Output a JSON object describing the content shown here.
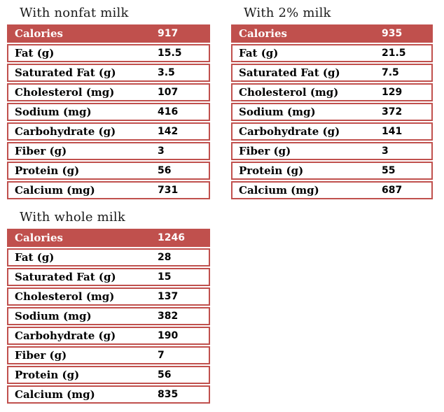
{
  "page": {
    "accent_color": "#c0504d",
    "background_color": "#ffffff"
  },
  "tables": [
    {
      "title": "With nonfat milk",
      "header": {
        "label": "Calories",
        "value": "917"
      },
      "rows": [
        {
          "label": "Fat (g)",
          "value": "15.5"
        },
        {
          "label": "Saturated Fat (g)",
          "value": "3.5"
        },
        {
          "label": "Cholesterol (mg)",
          "value": "107"
        },
        {
          "label": "Sodium (mg)",
          "value": "416"
        },
        {
          "label": "Carbohydrate (g)",
          "value": "142"
        },
        {
          "label": "Fiber (g)",
          "value": "3"
        },
        {
          "label": "Protein (g)",
          "value": "56"
        },
        {
          "label": "Calcium (mg)",
          "value": "731"
        }
      ]
    },
    {
      "title": "With 2% milk",
      "header": {
        "label": "Calories",
        "value": "935"
      },
      "rows": [
        {
          "label": "Fat (g)",
          "value": "21.5"
        },
        {
          "label": "Saturated Fat (g)",
          "value": "7.5"
        },
        {
          "label": "Cholesterol (mg)",
          "value": "129"
        },
        {
          "label": "Sodium (mg)",
          "value": "372"
        },
        {
          "label": "Carbohydrate (g)",
          "value": "141"
        },
        {
          "label": "Fiber (g)",
          "value": "3"
        },
        {
          "label": "Protein (g)",
          "value": "55"
        },
        {
          "label": "Calcium (mg)",
          "value": "687"
        }
      ]
    },
    {
      "title": "With whole milk",
      "header": {
        "label": "Calories",
        "value": "1246"
      },
      "rows": [
        {
          "label": "Fat (g)",
          "value": "28"
        },
        {
          "label": "Saturated Fat (g)",
          "value": "15"
        },
        {
          "label": "Cholesterol (mg)",
          "value": "137"
        },
        {
          "label": "Sodium (mg)",
          "value": "382"
        },
        {
          "label": "Carbohydrate (g)",
          "value": "190"
        },
        {
          "label": "Fiber (g)",
          "value": "7"
        },
        {
          "label": "Protein (g)",
          "value": "56"
        },
        {
          "label": "Calcium (mg)",
          "value": "835"
        }
      ]
    }
  ]
}
